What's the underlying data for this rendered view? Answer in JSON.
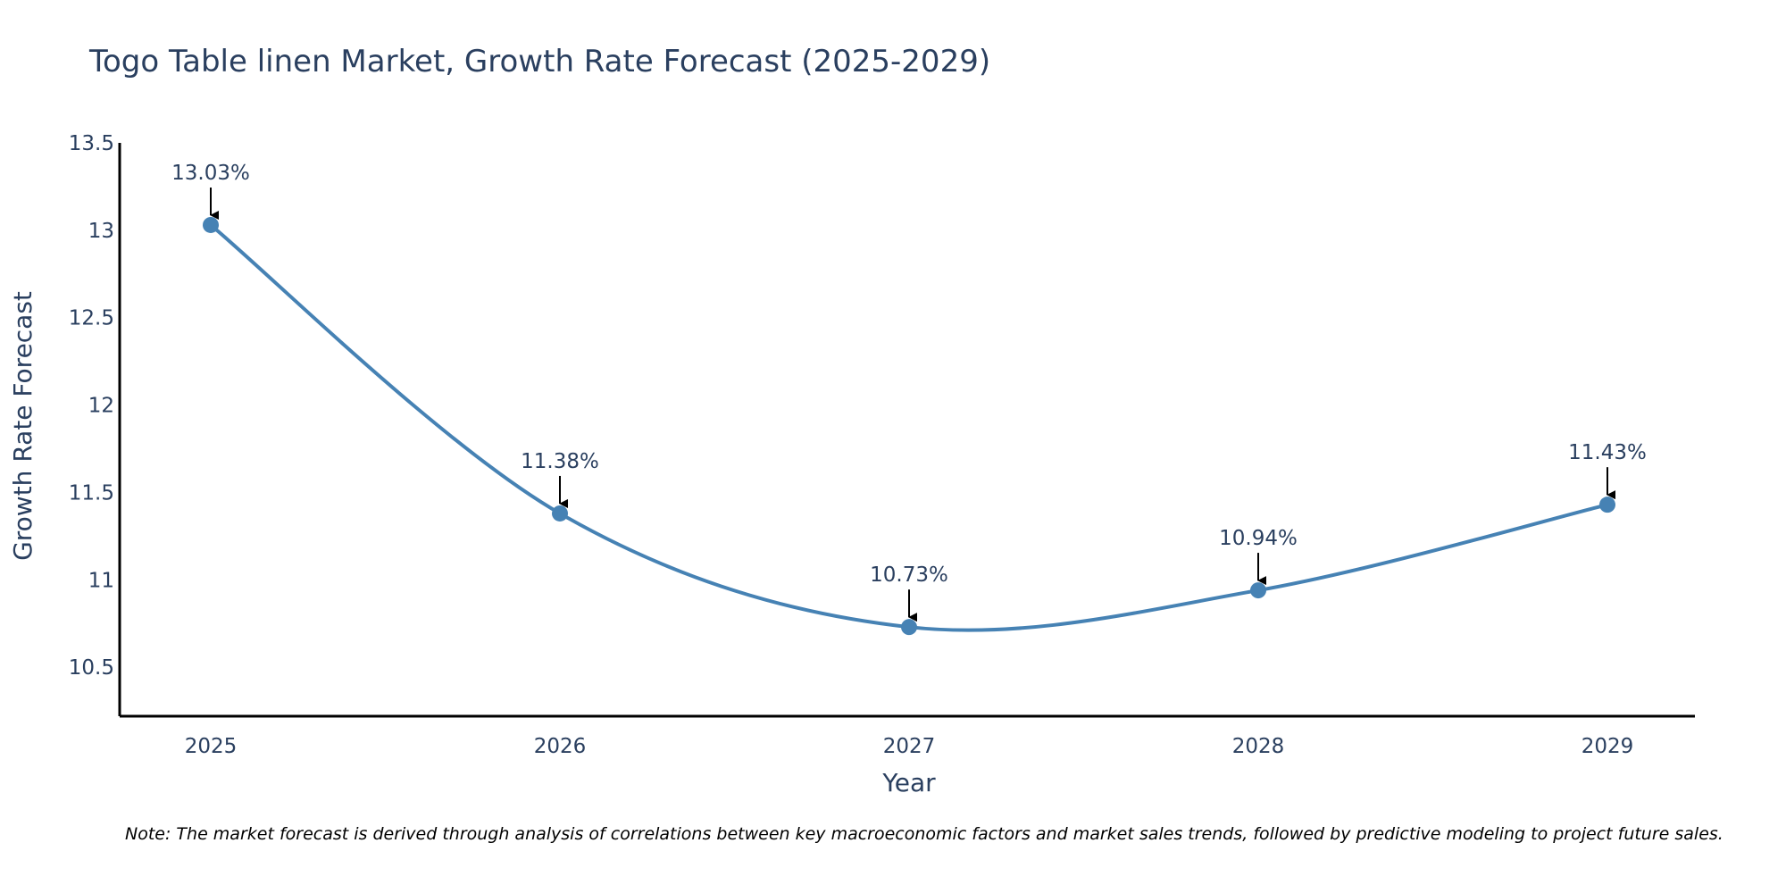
{
  "chart_data": {
    "type": "line",
    "title": "Togo Table linen Market, Growth Rate Forecast (2025-2029)",
    "xlabel": "Year",
    "ylabel": "Growth Rate Forecast",
    "categories": [
      "2025",
      "2026",
      "2027",
      "2028",
      "2029"
    ],
    "series": [
      {
        "name": "Growth Rate Forecast",
        "values": [
          13.03,
          11.38,
          10.73,
          10.94,
          11.43
        ],
        "labels": [
          "13.03%",
          "11.38%",
          "10.73%",
          "10.94%",
          "11.43%"
        ]
      }
    ],
    "yticks": [
      10.5,
      11,
      11.5,
      12,
      12.5,
      13,
      13.5
    ],
    "ytick_labels": [
      "10.5",
      "11",
      "11.5",
      "12",
      "12.5",
      "13",
      "13.5"
    ],
    "ylim": [
      10.22,
      13.5
    ],
    "grid": false,
    "line_color": "#4682b4",
    "marker_color": "#4682b4",
    "note": "Note: The market forecast is derived through analysis of correlations between key macroeconomic factors and market sales trends, followed by predictive modeling to project future sales."
  }
}
